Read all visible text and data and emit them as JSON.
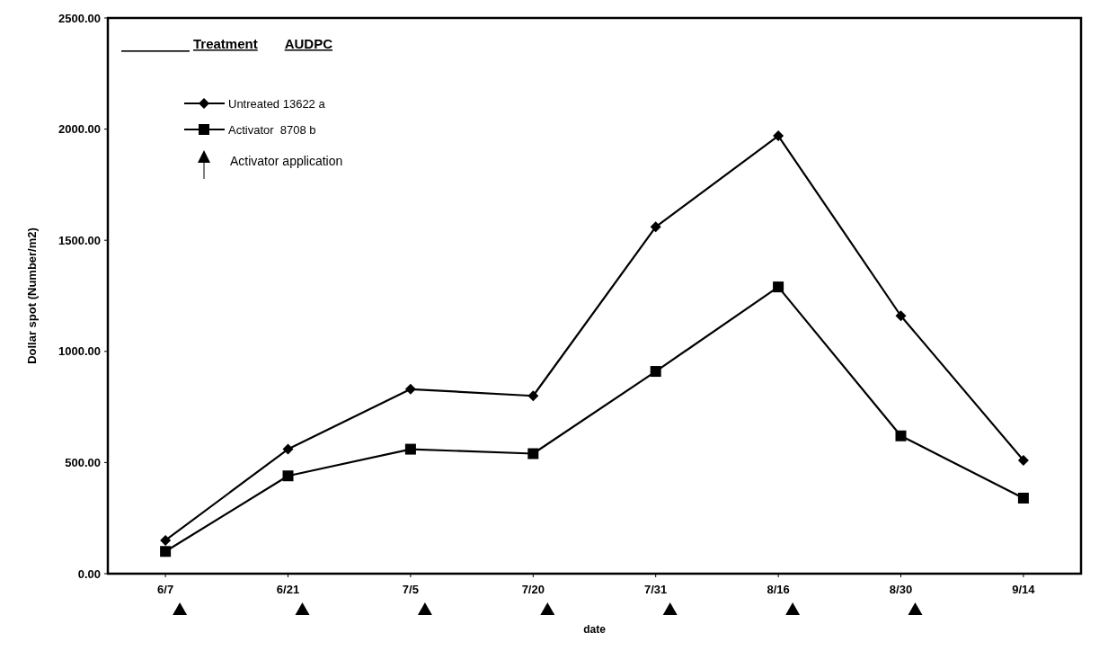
{
  "chart_data": {
    "type": "line",
    "legend_title": "Treatment      AUDPC",
    "xlabel": "date",
    "ylabel": "Dollar spot (Number/m2)",
    "categories": [
      "6/7",
      "6/21",
      "7/5",
      "7/20",
      "7/31",
      "8/16",
      "8/30",
      "9/14"
    ],
    "series": [
      {
        "name": "Untreated 13622 a",
        "color": "#000000",
        "marker": "diamond",
        "values": [
          150,
          560,
          830,
          800,
          1560,
          1970,
          1160,
          510
        ]
      },
      {
        "name": "Activator  8708 b",
        "color": "#000000",
        "marker": "square",
        "values": [
          100,
          440,
          560,
          540,
          910,
          1290,
          620,
          340
        ]
      }
    ],
    "ylim": [
      0,
      2500
    ],
    "yticks": [
      {
        "value": 0,
        "label": "0.00"
      },
      {
        "value": 500,
        "label": "500.00"
      },
      {
        "value": 1000,
        "label": "1000.00"
      },
      {
        "value": 1500,
        "label": "1500.00"
      },
      {
        "value": 2000,
        "label": "2000.00"
      },
      {
        "value": 2500,
        "label": "2500.00"
      }
    ],
    "grid": false,
    "legend": "top left",
    "line_style": "solid",
    "annotations": [
      "Activator application"
    ]
  }
}
